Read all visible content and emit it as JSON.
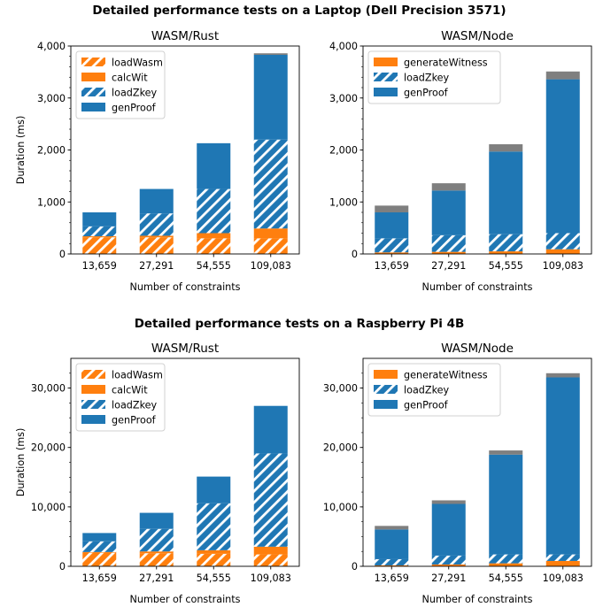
{
  "figure": {
    "rows": [
      {
        "suptitle": "Detailed performance tests on a Laptop (Dell Precision 3571)"
      },
      {
        "suptitle": "Detailed performance tests on a Raspberry Pi 4B"
      }
    ]
  },
  "colors": {
    "orange": "#ff7f0e",
    "blue": "#1f77b4",
    "gray": "#7f7f7f",
    "hatch": "#ffffff"
  },
  "chart_data": [
    {
      "type": "bar",
      "stacked": true,
      "title": "WASM/Rust",
      "xlabel": "Number of constraints",
      "ylabel": "Duration (ms)",
      "categories": [
        "13,659",
        "27,291",
        "54,555",
        "109,083"
      ],
      "ylim": [
        0,
        4000
      ],
      "yticks": [
        "0",
        "1,000",
        "2,000",
        "3,000",
        "4,000"
      ],
      "legend_position": "top-left",
      "series": [
        {
          "name": "loadWasm",
          "color": "#ff7f0e",
          "hatch": true,
          "values": [
            320,
            320,
            300,
            300
          ]
        },
        {
          "name": "calcWit",
          "color": "#ff7f0e",
          "hatch": false,
          "values": [
            20,
            30,
            100,
            190
          ]
        },
        {
          "name": "loadZkey",
          "color": "#1f77b4",
          "hatch": true,
          "values": [
            190,
            430,
            850,
            1710
          ]
        },
        {
          "name": "genProof",
          "color": "#1f77b4",
          "hatch": false,
          "values": [
            270,
            470,
            880,
            1630
          ]
        },
        {
          "name": "",
          "color": "#7f7f7f",
          "hatch": false,
          "in_legend": false,
          "values": [
            0,
            0,
            0,
            30
          ]
        }
      ]
    },
    {
      "type": "bar",
      "stacked": true,
      "title": "WASM/Node",
      "xlabel": "Number of constraints",
      "ylabel": "",
      "categories": [
        "13,659",
        "27,291",
        "54,555",
        "109,083"
      ],
      "ylim": [
        0,
        4000
      ],
      "yticks": [
        "0",
        "1,000",
        "2,000",
        "3,000",
        "4,000"
      ],
      "legend_position": "top-left",
      "series": [
        {
          "name": "generateWitness",
          "color": "#ff7f0e",
          "hatch": false,
          "values": [
            30,
            40,
            50,
            90
          ]
        },
        {
          "name": "loadZkey",
          "color": "#1f77b4",
          "hatch": true,
          "values": [
            270,
            320,
            330,
            310
          ]
        },
        {
          "name": "genProof",
          "color": "#1f77b4",
          "hatch": false,
          "values": [
            500,
            860,
            1590,
            2960
          ]
        },
        {
          "name": "",
          "color": "#7f7f7f",
          "hatch": false,
          "in_legend": false,
          "values": [
            130,
            140,
            140,
            150
          ]
        }
      ]
    },
    {
      "type": "bar",
      "stacked": true,
      "title": "WASM/Rust",
      "xlabel": "Number of constraints",
      "ylabel": "Duration (ms)",
      "categories": [
        "13,659",
        "27,291",
        "54,555",
        "109,083"
      ],
      "ylim": [
        0,
        35000
      ],
      "yticks": [
        "0",
        "10,000",
        "20,000",
        "30,000"
      ],
      "legend_position": "top-left",
      "series": [
        {
          "name": "loadWasm",
          "color": "#ff7f0e",
          "hatch": true,
          "values": [
            2300,
            2200,
            2100,
            2000
          ]
        },
        {
          "name": "calcWit",
          "color": "#ff7f0e",
          "hatch": false,
          "values": [
            100,
            300,
            600,
            1300
          ]
        },
        {
          "name": "loadZkey",
          "color": "#1f77b4",
          "hatch": true,
          "values": [
            1800,
            3800,
            7900,
            15700
          ]
        },
        {
          "name": "genProof",
          "color": "#1f77b4",
          "hatch": false,
          "values": [
            1400,
            2700,
            4500,
            8000
          ]
        }
      ]
    },
    {
      "type": "bar",
      "stacked": true,
      "title": "WASM/Node",
      "xlabel": "Number of constraints",
      "ylabel": "",
      "categories": [
        "13,659",
        "27,291",
        "54,555",
        "109,083"
      ],
      "ylim": [
        0,
        35000
      ],
      "yticks": [
        "0",
        "10,000",
        "20,000",
        "30,000"
      ],
      "legend_position": "top-left",
      "series": [
        {
          "name": "generateWitness",
          "color": "#ff7f0e",
          "hatch": false,
          "values": [
            150,
            300,
            500,
            900
          ]
        },
        {
          "name": "loadZkey",
          "color": "#1f77b4",
          "hatch": true,
          "values": [
            1050,
            1500,
            1500,
            1100
          ]
        },
        {
          "name": "genProof",
          "color": "#1f77b4",
          "hatch": false,
          "values": [
            5000,
            8700,
            16800,
            29800
          ]
        },
        {
          "name": "",
          "color": "#7f7f7f",
          "hatch": false,
          "in_legend": false,
          "values": [
            600,
            600,
            700,
            700
          ]
        }
      ]
    }
  ]
}
